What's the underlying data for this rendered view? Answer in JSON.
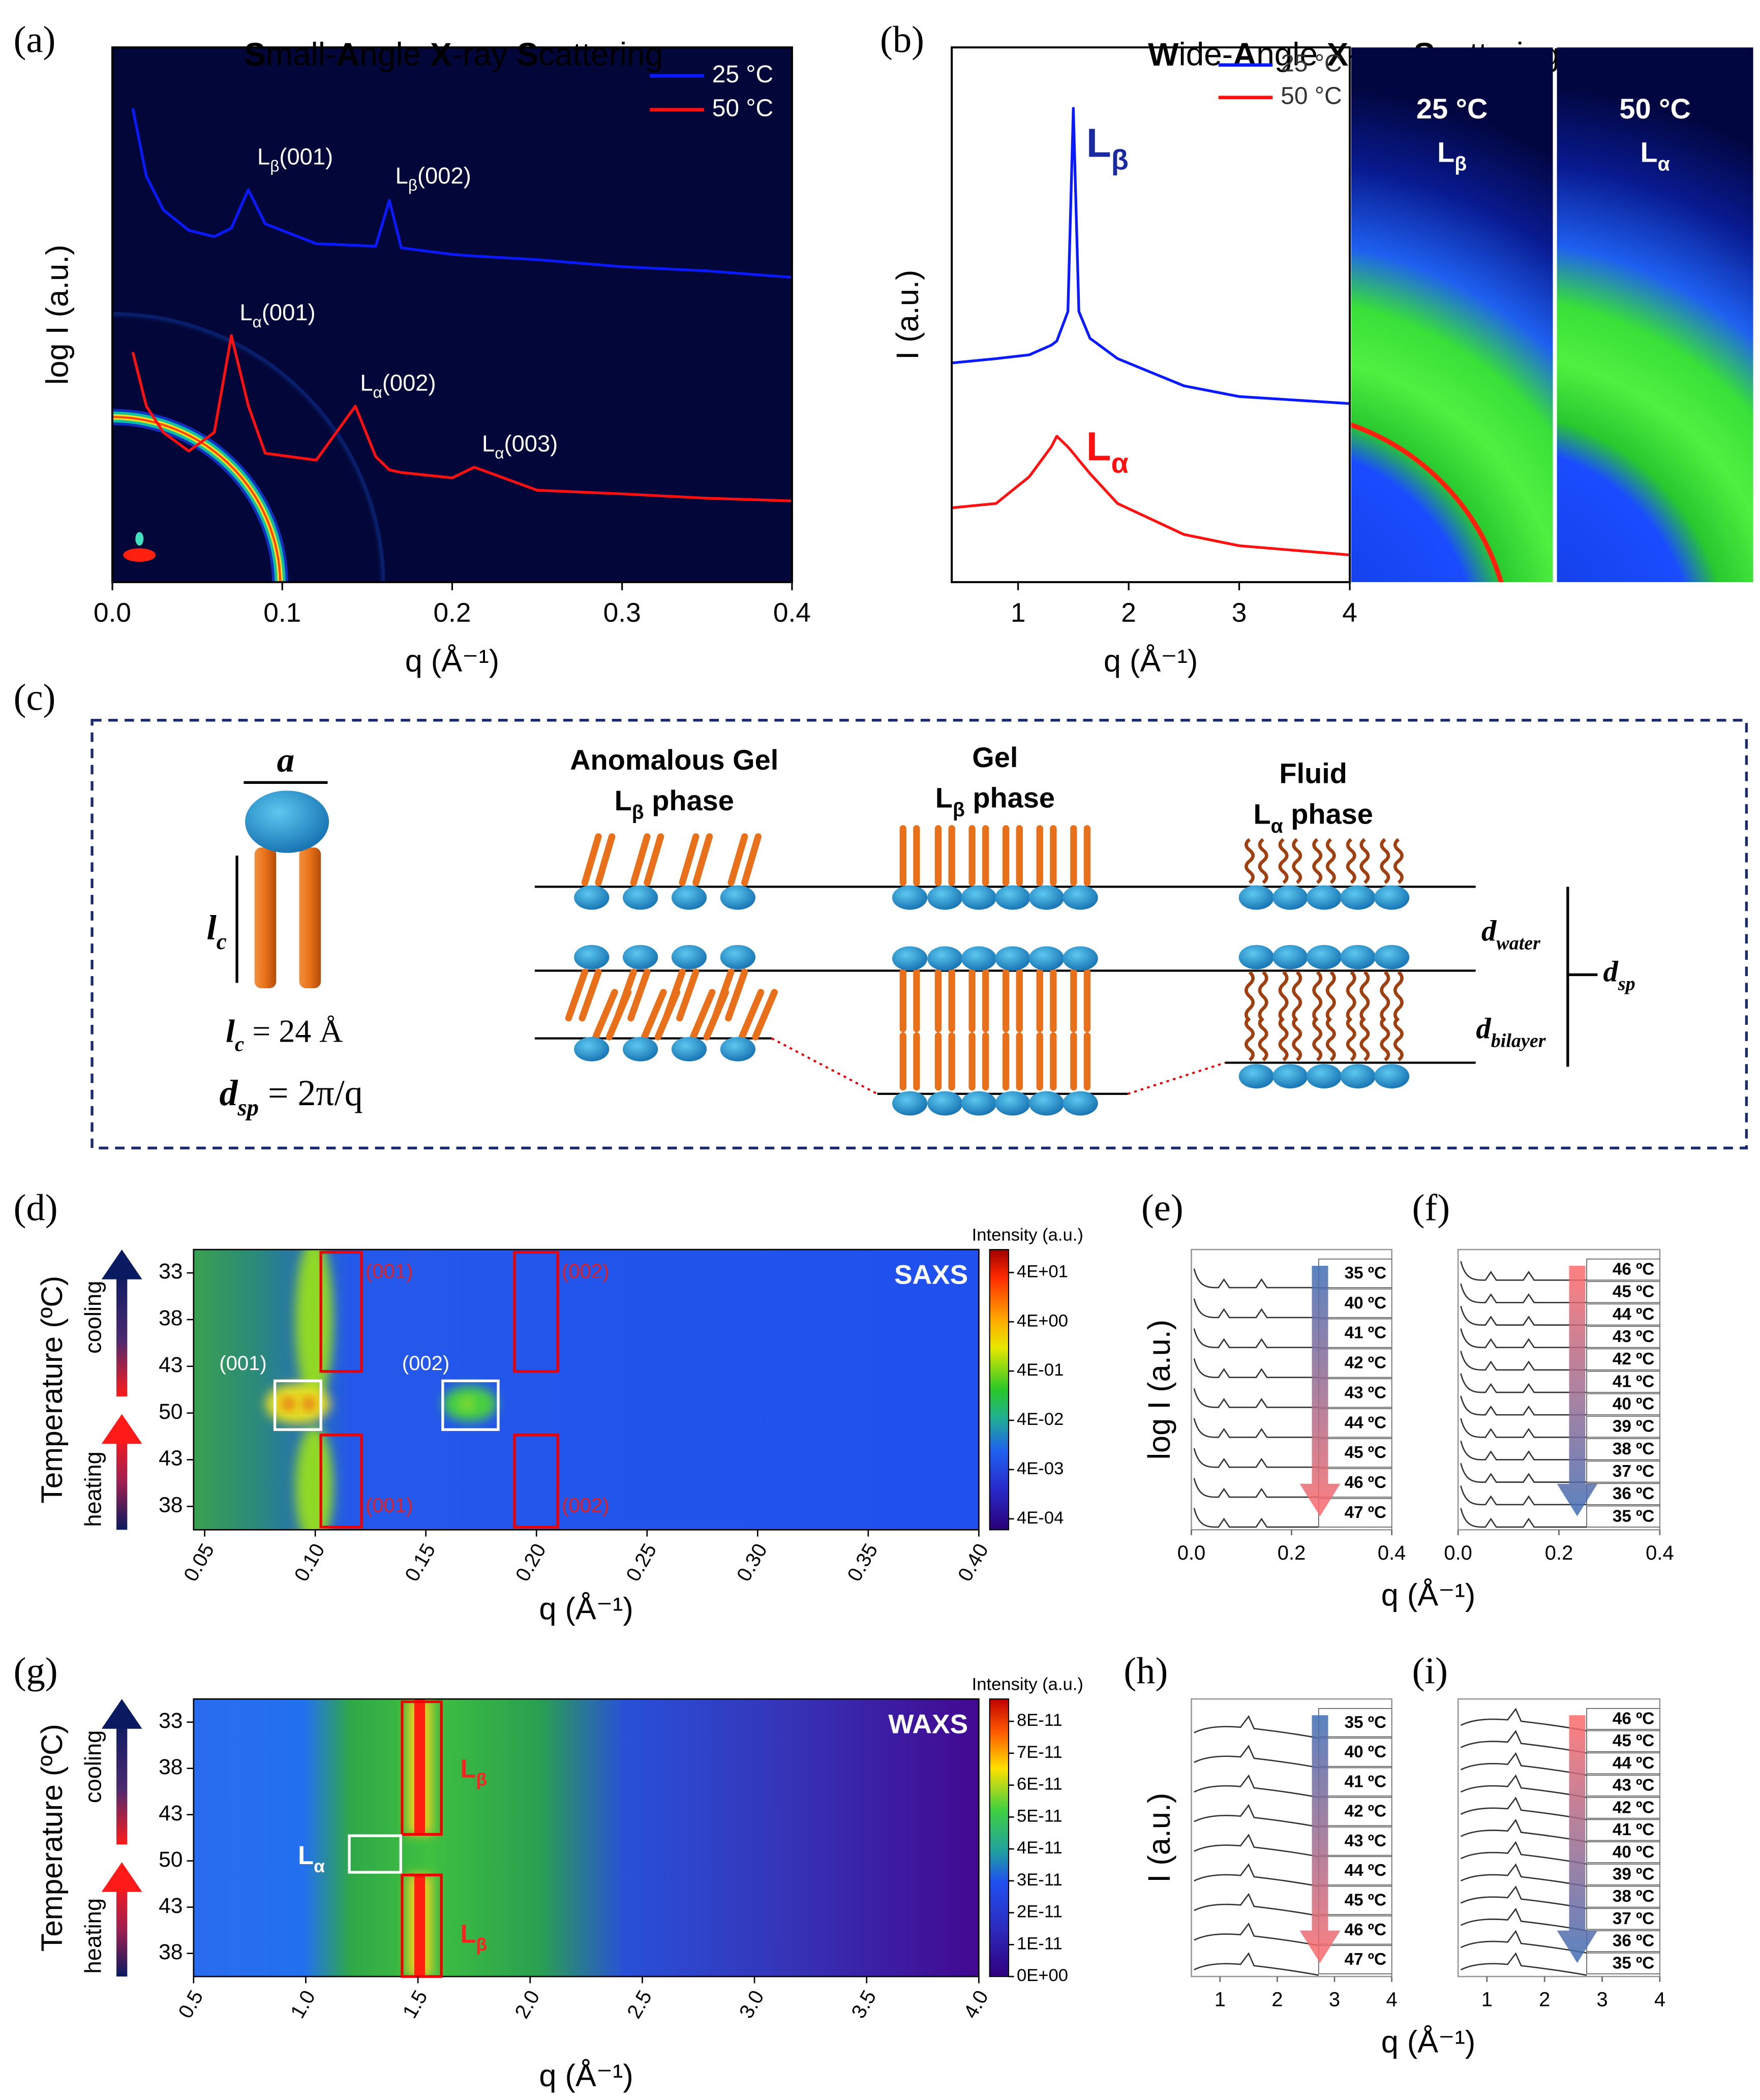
{
  "chart_data": [
    {
      "panel_label": "(a)",
      "type": "line",
      "title": "Small-Angle X-ray Scattering",
      "xlabel": "q (Å⁻¹)",
      "ylabel": "log I (a.u.)",
      "background": "#020638",
      "xlim": [
        0,
        0.4
      ],
      "xticks": [
        {
          "value": 0,
          "label": "0.0"
        },
        0.1,
        0.2,
        0.3,
        0.4
      ],
      "ylim": [
        0,
        1
      ],
      "x": [
        0.012,
        0.02,
        0.03,
        0.045,
        0.06,
        0.07,
        0.08,
        0.09,
        0.12,
        0.143,
        0.155,
        0.163,
        0.17,
        0.2,
        0.213,
        0.25,
        0.3,
        0.35,
        0.4
      ],
      "series": [
        {
          "name": "25 °C",
          "color": "#0a1aff",
          "values": [
            0.886,
            0.759,
            0.696,
            0.658,
            0.646,
            0.662,
            0.734,
            0.67,
            0.633,
            0.63,
            0.628,
            0.714,
            0.625,
            0.613,
            0.61,
            0.603,
            0.59,
            0.582,
            0.57
          ]
        },
        {
          "name": "50 °C",
          "color": "#ff1010",
          "values": [
            0.43,
            0.329,
            0.28,
            0.245,
            0.28,
            0.461,
            0.33,
            0.241,
            0.228,
            0.329,
            0.235,
            0.21,
            0.205,
            0.195,
            0.215,
            0.172,
            0.165,
            0.157,
            0.152
          ]
        }
      ],
      "annotations": [
        "Lβ(001)",
        "Lβ(002)",
        "Lα(001)",
        "Lα(002)",
        "Lα(003)"
      ]
    },
    {
      "panel_label": "(b)",
      "type": "line",
      "title": "Wide-Angle X-ray Scattering",
      "xlabel": "q (Å⁻¹)",
      "ylabel": "I (a.u.)",
      "xlim": [
        0.4,
        4
      ],
      "xticks": [
        1,
        2,
        3,
        4
      ],
      "ylim": [
        0,
        1
      ],
      "x": [
        0.4,
        0.8,
        1.1,
        1.3,
        1.35,
        1.45,
        1.5,
        1.55,
        1.65,
        1.9,
        2.5,
        3,
        4
      ],
      "series": [
        {
          "name": "25 °C",
          "color": "#0a1aff",
          "values": [
            0.41,
            0.418,
            0.425,
            0.443,
            0.451,
            0.506,
            0.886,
            0.506,
            0.456,
            0.418,
            0.367,
            0.347,
            0.334
          ]
        },
        {
          "name": "50 °C",
          "color": "#ff1010",
          "values": [
            0.139,
            0.147,
            0.197,
            0.253,
            0.273,
            0.253,
            0.241,
            0.228,
            0.203,
            0.147,
            0.089,
            0.068,
            0.051
          ]
        }
      ],
      "annotations": [
        "Lβ",
        "Lα"
      ],
      "images": [
        {
          "title": "25 °C",
          "phase": "Lβ"
        },
        {
          "title": "50 °C",
          "phase": "Lα"
        }
      ]
    },
    {
      "panel_label": "(d)",
      "type": "heatmap",
      "label": "SAXS",
      "xlabel": "q (Å⁻¹)",
      "ylabel": "Temperature (ºC)",
      "xlim": [
        0.045,
        0.4
      ],
      "xticks": [
        0.05,
        {
          "value": 0.1,
          "label": "0.10"
        },
        0.15,
        {
          "value": 0.2,
          "label": "0.20"
        },
        0.25,
        {
          "value": 0.3,
          "label": "0.30"
        },
        0.35,
        {
          "value": 0.4,
          "label": "0.40"
        }
      ],
      "categories": [
        "33",
        "38",
        "43",
        "50",
        "43",
        "38"
      ],
      "arrows": [
        "cooling",
        "heating"
      ],
      "box_labels": [
        "(001)",
        "(002)",
        "(001)",
        "(002)",
        "(001)",
        "(002)"
      ],
      "colorbar": {
        "title": "Intensity (a.u.)",
        "scale": "log",
        "lim": [
          0.00024,
          117
        ],
        "ticks": [
          {
            "value": 40,
            "label": "4E+01"
          },
          {
            "value": 4,
            "label": "4E+00"
          },
          {
            "value": 0.4,
            "label": "4E-01"
          },
          {
            "value": 0.04,
            "label": "4E-02"
          },
          {
            "value": 0.004,
            "label": "4E-03"
          },
          {
            "value": 0.0004,
            "label": "4E-04"
          }
        ]
      }
    },
    {
      "panel_label": "(e)",
      "type": "stack",
      "ylabel": "log I (a.u.)",
      "xlim": [
        0,
        0.4
      ],
      "xticks": [
        {
          "value": 0,
          "label": "0.0"
        },
        0.2,
        0.4
      ],
      "categories": [
        "35 ºC",
        "40 ºC",
        "41 ºC",
        "42 ºC",
        "43 ºC",
        "44 ºC",
        "45 ºC",
        "46 ºC",
        "47 ºC"
      ],
      "arrow_colors": [
        "#3d6db5",
        "#ff6a6a"
      ]
    },
    {
      "panel_label": "(f)",
      "type": "stack",
      "xlabel": "q (Å⁻¹)",
      "xlim": [
        0,
        0.4
      ],
      "xticks": [
        {
          "value": 0,
          "label": "0.0"
        },
        0.2,
        0.4
      ],
      "categories": [
        "46 ºC",
        "45 ºC",
        "44 ºC",
        "43 ºC",
        "42 ºC",
        "41 ºC",
        "40 ºC",
        "39 ºC",
        "38 ºC",
        "37 ºC",
        "36 ºC",
        "35 ºC"
      ],
      "arrow_colors": [
        "#ff6a6a",
        "#3d6db5"
      ]
    },
    {
      "panel_label": "(g)",
      "type": "heatmap",
      "label": "WAXS",
      "xlabel": "q (Å⁻¹)",
      "ylabel": "Temperature (ºC)",
      "xlim": [
        0.5,
        4
      ],
      "xticks": [
        0.5,
        {
          "value": 1,
          "label": "1.0"
        },
        1.5,
        {
          "value": 2,
          "label": "2.0"
        },
        2.5,
        {
          "value": 3,
          "label": "3.0"
        },
        3.5,
        {
          "value": 4,
          "label": "4.0"
        }
      ],
      "categories": [
        "33",
        "38",
        "43",
        "50",
        "43",
        "38"
      ],
      "arrows": [
        "cooling",
        "heating"
      ],
      "box_labels": [
        "Lβ",
        "Lα",
        "Lβ"
      ],
      "colorbar": {
        "title": "Intensity (a.u.)",
        "scale": "linear",
        "lim": [
          0,
          8.7e-11
        ],
        "ticks": [
          {
            "value": 8e-11,
            "label": "8E-11"
          },
          {
            "value": 7e-11,
            "label": "7E-11"
          },
          {
            "value": 6e-11,
            "label": "6E-11"
          },
          {
            "value": 5e-11,
            "label": "5E-11"
          },
          {
            "value": 4e-11,
            "label": "4E-11"
          },
          {
            "value": 3e-11,
            "label": "3E-11"
          },
          {
            "value": 2e-11,
            "label": "2E-11"
          },
          {
            "value": 1e-11,
            "label": "1E-11"
          },
          {
            "value": 0,
            "label": "0E+00"
          }
        ]
      }
    },
    {
      "panel_label": "(h)",
      "type": "stack",
      "ylabel": "I (a.u.)",
      "xlim": [
        0.5,
        4
      ],
      "xticks": [
        1,
        2,
        3,
        4
      ],
      "categories": [
        "35 ºC",
        "40 ºC",
        "41 ºC",
        "42 ºC",
        "43 ºC",
        "44 ºC",
        "45 ºC",
        "46 ºC",
        "47 ºC"
      ],
      "arrow_colors": [
        "#3d6db5",
        "#ff6a6a"
      ]
    },
    {
      "panel_label": "(i)",
      "type": "stack",
      "xlabel": "q (Å⁻¹)",
      "xlim": [
        0.5,
        4
      ],
      "xticks": [
        1,
        2,
        3,
        4
      ],
      "categories": [
        "46 ºC",
        "45 ºC",
        "44 ºC",
        "43 ºC",
        "42 ºC",
        "41 ºC",
        "40 ºC",
        "39 ºC",
        "38 ºC",
        "37 ºC",
        "36 ºC",
        "35 ºC"
      ],
      "arrow_colors": [
        "#ff6a6a",
        "#3d6db5"
      ]
    }
  ],
  "diagram": {
    "panel_label": "(c)",
    "head_width": "a",
    "chain_length": {
      "base": "l",
      "sub": "c"
    },
    "chain_value": {
      "base": "l",
      "sub": "c",
      "rest": " = 24 Å"
    },
    "spacing": {
      "base": "d",
      "sub": "sp",
      "rest": " = 2π/q"
    },
    "phases": [
      {
        "name": "Anomalous Gel",
        "phase": "Lβ phase"
      },
      {
        "name": "Gel",
        "phase": "Lβ phase"
      },
      {
        "name": "Fluid",
        "phase": "Lα phase"
      }
    ],
    "d_water": {
      "base": "d",
      "sub": "water"
    },
    "d_bilayer": {
      "base": "d",
      "sub": "bilayer"
    },
    "d_sp": {
      "base": "d",
      "sub": "sp"
    }
  }
}
